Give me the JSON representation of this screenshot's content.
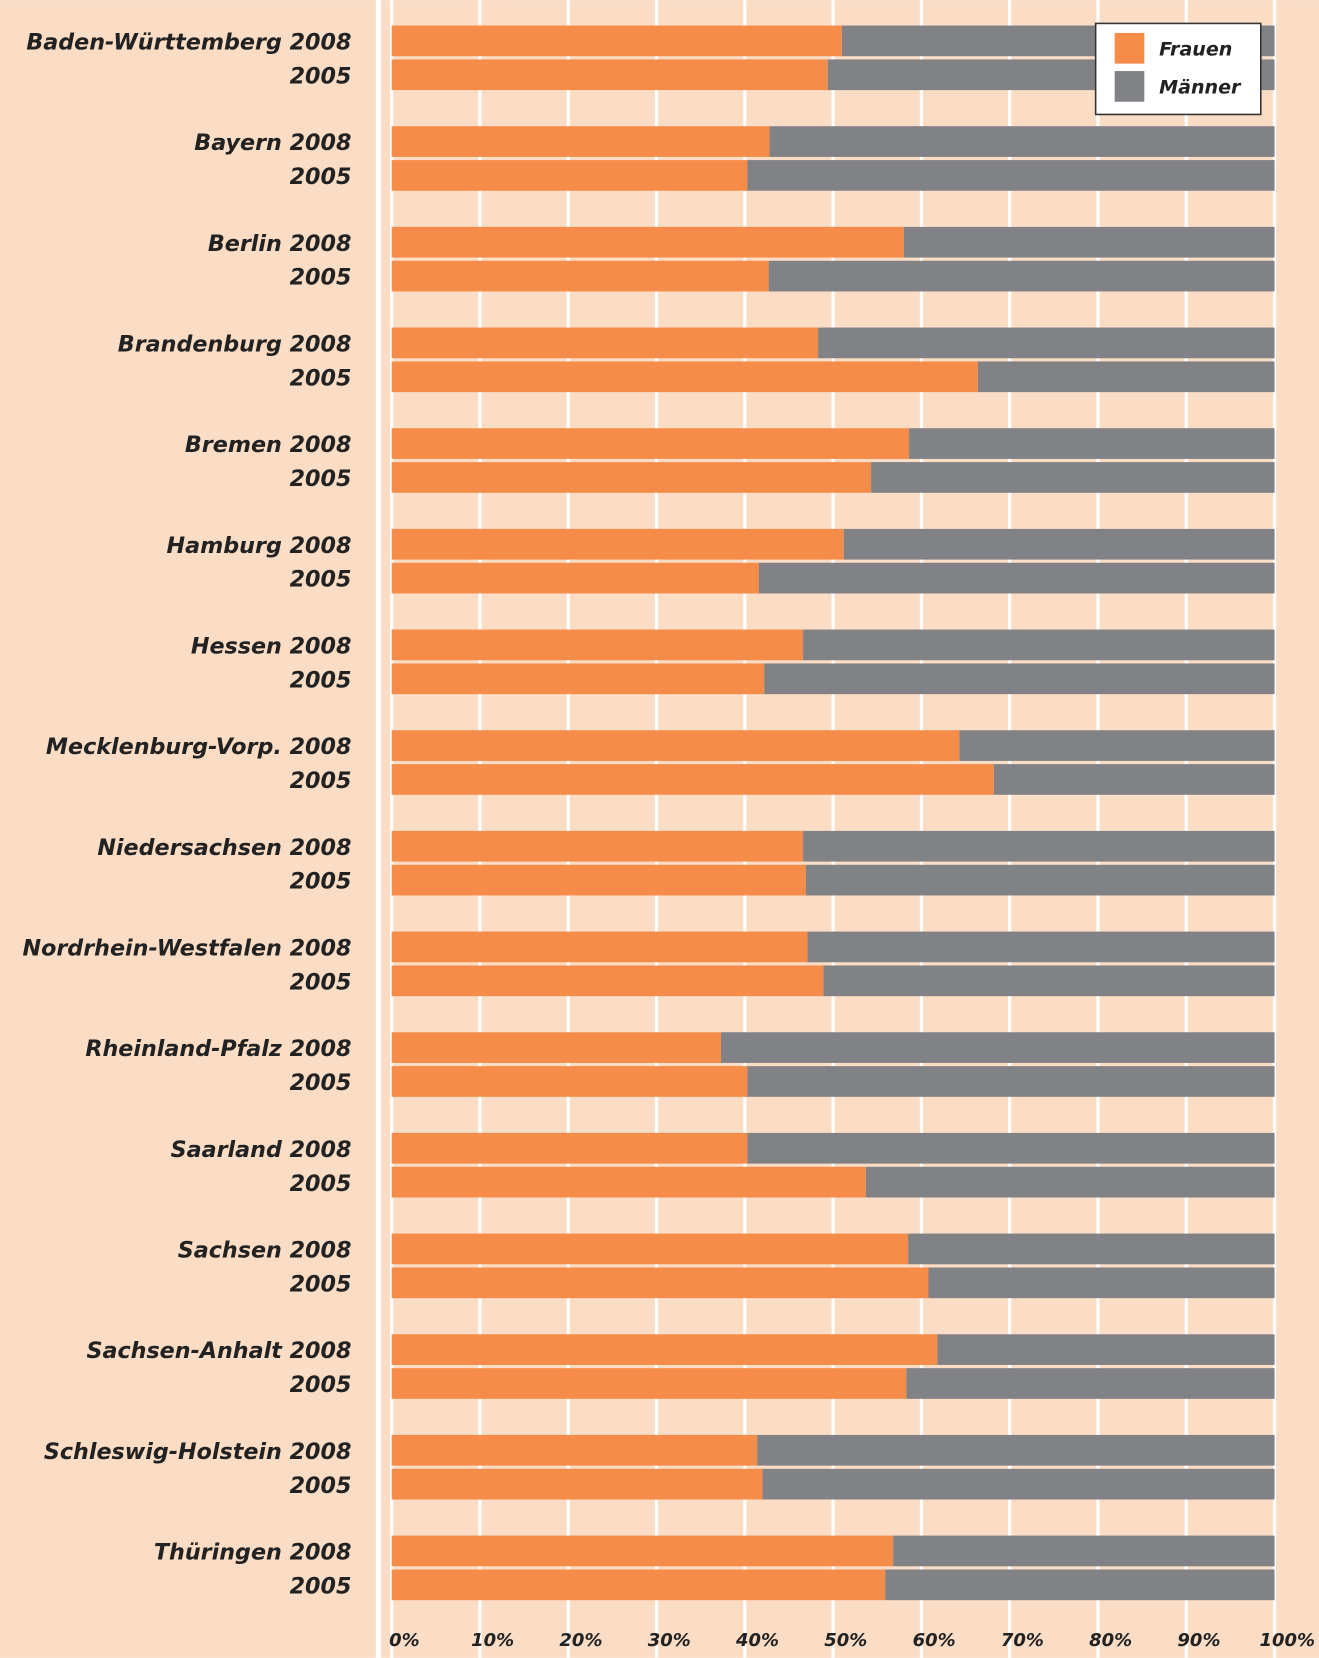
{
  "chart_data": {
    "type": "stacked-barh",
    "categories": [
      "Baden-Württemberg 2008",
      "2005",
      "Bayern 2008",
      "2005",
      "Berlin 2008",
      "2005",
      "Brandenburg 2008",
      "2005",
      "Bremen 2008",
      "2005",
      "Hamburg 2008",
      "2005",
      "Hessen 2008",
      "2005",
      "Mecklenburg-Vorp. 2008",
      "2005",
      "Niedersachsen 2008",
      "2005",
      "Nordrhein-Westfalen 2008",
      "2005",
      "Rheinland-Pfalz 2008",
      "2005",
      "Saarland 2008",
      "2005",
      "Sachsen 2008",
      "2005",
      "Sachsen-Anhalt 2008",
      "2005",
      "Schleswig-Holstein 2008",
      "2005",
      "Thüringen 2008",
      "2005"
    ],
    "series": [
      {
        "name": "Frauen",
        "color": "#f58c4a",
        "values": [
          51.0,
          49.4,
          42.8,
          40.3,
          58.0,
          42.7,
          48.3,
          66.4,
          58.6,
          54.3,
          51.2,
          41.6,
          46.6,
          42.2,
          64.3,
          68.2,
          46.6,
          46.9,
          47.1,
          48.9,
          37.3,
          40.3,
          40.3,
          53.7,
          58.5,
          60.8,
          61.8,
          58.3,
          41.4,
          42.0,
          56.8,
          55.9
        ]
      },
      {
        "name": "Männer",
        "color": "#818286",
        "values": [
          49.0,
          50.6,
          57.2,
          59.7,
          42.0,
          57.3,
          51.7,
          33.6,
          41.4,
          45.7,
          48.8,
          58.4,
          53.4,
          57.8,
          35.7,
          31.8,
          53.4,
          53.1,
          52.9,
          51.1,
          62.7,
          59.7,
          59.7,
          46.3,
          41.5,
          39.2,
          38.2,
          41.7,
          58.6,
          58.0,
          43.2,
          44.1
        ]
      }
    ],
    "xlim": [
      0,
      100
    ],
    "xticks": [
      {
        "value": 0,
        "label": "0%"
      },
      {
        "value": 10,
        "label": "10%"
      },
      {
        "value": 20,
        "label": "20%"
      },
      {
        "value": 30,
        "label": "30%"
      },
      {
        "value": 40,
        "label": "40%"
      },
      {
        "value": 50,
        "label": "50%"
      },
      {
        "value": 60,
        "label": "60%"
      },
      {
        "value": 70,
        "label": "70%"
      },
      {
        "value": 80,
        "label": "80%"
      },
      {
        "value": 90,
        "label": "90%"
      },
      {
        "value": 100,
        "label": "100%"
      }
    ],
    "grid": true,
    "legend": "upper right"
  }
}
